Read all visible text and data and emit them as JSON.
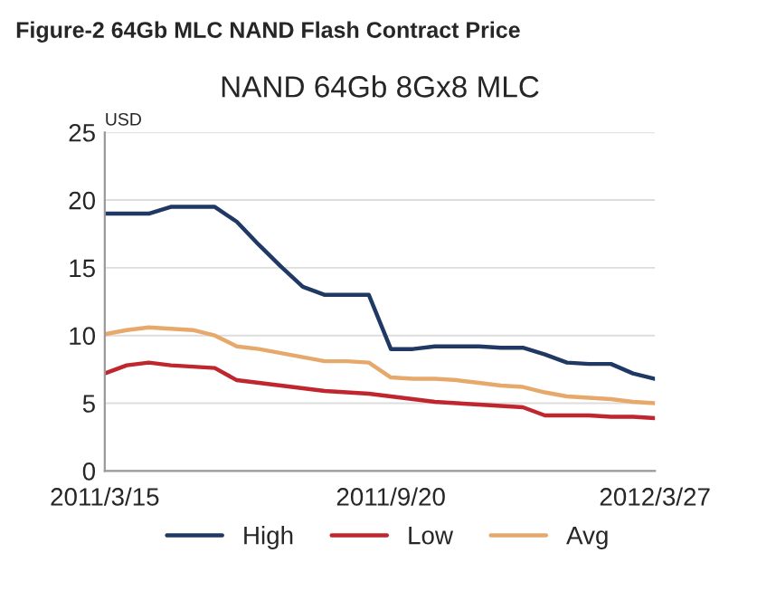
{
  "chart_data": {
    "type": "line",
    "title": "NAND 64Gb 8Gx8 MLC",
    "subtitle": "Figure-2 64Gb MLC NAND Flash Contract Price",
    "ylabel": "USD",
    "categories": [
      "2011/3/15",
      null,
      null,
      null,
      null,
      null,
      null,
      null,
      null,
      null,
      null,
      null,
      null,
      "2011/9/20",
      null,
      null,
      null,
      null,
      null,
      null,
      null,
      null,
      null,
      null,
      null,
      "2012/3/27"
    ],
    "series": [
      {
        "name": "High",
        "color": "#1f3864",
        "values": [
          19,
          19,
          19,
          19.5,
          19.5,
          19.5,
          18.4,
          16.7,
          15.1,
          13.6,
          13,
          13,
          13,
          9.0,
          9.0,
          9.2,
          9.2,
          9.2,
          9.1,
          9.1,
          8.6,
          8.0,
          7.9,
          7.9,
          7.2,
          6.8
        ]
      },
      {
        "name": "Low",
        "color": "#c0262d",
        "values": [
          7.2,
          7.8,
          8.0,
          7.8,
          7.7,
          7.6,
          6.7,
          6.5,
          6.3,
          6.1,
          5.9,
          5.8,
          5.7,
          5.5,
          5.3,
          5.1,
          5.0,
          4.9,
          4.8,
          4.7,
          4.1,
          4.1,
          4.1,
          4.0,
          4.0,
          3.9
        ]
      },
      {
        "name": "Avg",
        "color": "#e6a96b",
        "values": [
          10.1,
          10.4,
          10.6,
          10.5,
          10.4,
          10.0,
          9.2,
          9.0,
          8.7,
          8.4,
          8.1,
          8.1,
          8.0,
          6.9,
          6.8,
          6.8,
          6.7,
          6.5,
          6.3,
          6.2,
          5.8,
          5.5,
          5.4,
          5.3,
          5.1,
          5.0
        ]
      }
    ],
    "ylim": [
      0,
      25
    ],
    "yticks": [
      0,
      5,
      10,
      15,
      20,
      25
    ],
    "grid": "y",
    "legend": "bottom",
    "marker": "none",
    "line_style": "solid"
  }
}
